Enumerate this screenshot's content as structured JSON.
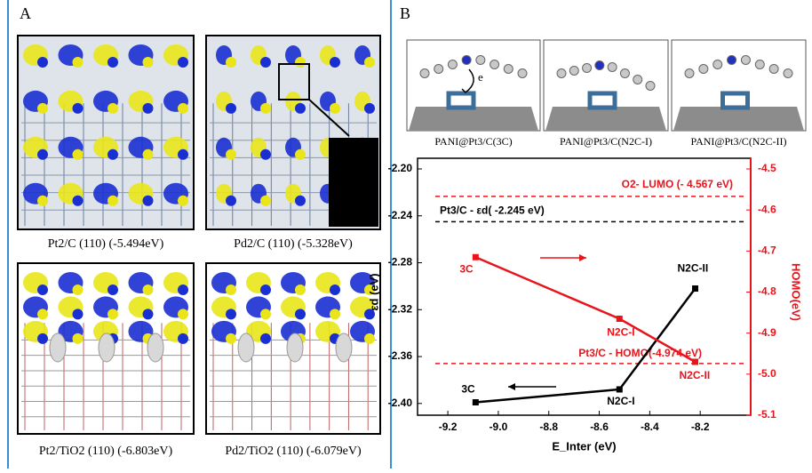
{
  "panel_a": {
    "label": "A",
    "images": [
      {
        "caption": "Pt2/C (110) (-5.494eV)"
      },
      {
        "caption": "Pd2/C (110) (-5.328eV)"
      },
      {
        "caption": "Pt2/TiO2 (110) (-6.803eV)"
      },
      {
        "caption": "Pd2/TiO2 (110) (-6.079eV)"
      }
    ]
  },
  "panel_b": {
    "label": "B",
    "structure_annotation": "e",
    "structures": [
      {
        "caption": "PANI@Pt3/C(3C)"
      },
      {
        "caption": "PANI@Pt3/C(N2C-I)"
      },
      {
        "caption": "PANI@Pt3/C(N2C-II)"
      }
    ]
  },
  "chart_data": {
    "type": "line",
    "x_label": "E_Inter (eV)",
    "y_label": "εd (eV)",
    "y2_label": "HOMO(eV)",
    "xlim": [
      -9.32,
      -8.0
    ],
    "xticks": [
      -9.2,
      {
        "value": -9.0,
        "label": "-9.0"
      },
      -8.8,
      -8.6,
      -8.4,
      -8.2
    ],
    "ylim": [
      -2.41,
      -2.2
    ],
    "yticks": [
      {
        "value": -2.2,
        "label": "-2.20"
      },
      {
        "value": -2.24,
        "label": "-2.24"
      },
      {
        "value": -2.28,
        "label": "-2.28"
      },
      {
        "value": -2.32,
        "label": "-2.32"
      },
      {
        "value": -2.36,
        "label": "-2.36"
      },
      {
        "value": -2.4,
        "label": "-2.40"
      }
    ],
    "y2lim": [
      -5.1,
      -4.5
    ],
    "y2ticks": [
      -4.5,
      -4.6,
      -4.7,
      -4.8,
      -4.9,
      {
        "value": -5.0,
        "label": "-5.0"
      },
      -5.1
    ],
    "y2_color": "#e8141c",
    "series": [
      {
        "color": "#000000",
        "x": [
          -9.09,
          -8.52,
          -8.22
        ],
        "values": [
          -2.399,
          -2.388,
          -2.302
        ],
        "point_labels": [
          "3C",
          "N2C-I",
          "N2C-II"
        ]
      },
      {
        "color": "#e8141c",
        "axis": "y2",
        "x": [
          -9.09,
          -8.52,
          -8.22
        ],
        "values": [
          -4.715,
          -4.865,
          -4.97
        ],
        "point_labels": [
          "3C",
          "N2C-I",
          "N2C-II"
        ]
      }
    ],
    "reference_lines": [
      {
        "value": -2.245,
        "color": "#000000",
        "label": "Pt3/C - εd( -2.245 eV)"
      },
      {
        "value": -4.567,
        "axis": "y2",
        "color": "#e8141c",
        "label": "O2- LUMO (- 4.567 eV)"
      },
      {
        "value": -4.974,
        "axis": "y2",
        "color": "#e8141c",
        "label": "Pt3/C - HOMO(-4.974 eV)"
      }
    ]
  }
}
